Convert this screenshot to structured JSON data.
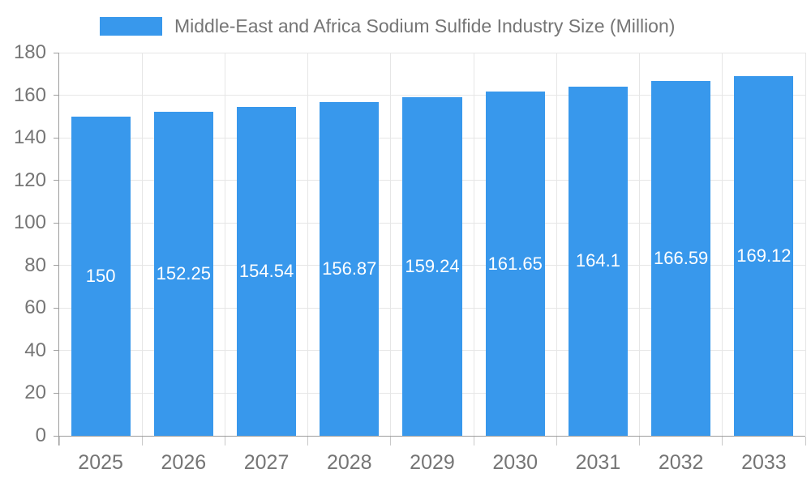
{
  "chart_data": {
    "type": "bar",
    "title": "Middle-East and Africa Sodium Sulfide Industry Size (Million)",
    "categories": [
      "2025",
      "2026",
      "2027",
      "2028",
      "2029",
      "2030",
      "2031",
      "2032",
      "2033"
    ],
    "values": [
      150,
      152.25,
      154.54,
      156.87,
      159.24,
      161.65,
      164.1,
      166.59,
      169.12
    ],
    "values_display": [
      "150",
      "152.25",
      "154.54",
      "156.87",
      "159.24",
      "161.65",
      "164.1",
      "166.59",
      "169.12"
    ],
    "series_name": "Middle-East and Africa Sodium Sulfide Industry Size (Million)",
    "xlabel": "",
    "ylabel": "",
    "ylim": [
      0,
      180
    ],
    "y_ticks": [
      "0",
      "20",
      "40",
      "60",
      "80",
      "100",
      "120",
      "140",
      "160",
      "180"
    ],
    "grid": "on",
    "legend_position": "top",
    "colors": {
      "bar": "#3898EC",
      "grid": "#E6E6E6",
      "axis": "#9E9E9E",
      "tick": "#C9C9C9",
      "text": "#757575",
      "value_label": "#FFFFFF",
      "background": "#FFFFFF"
    }
  }
}
